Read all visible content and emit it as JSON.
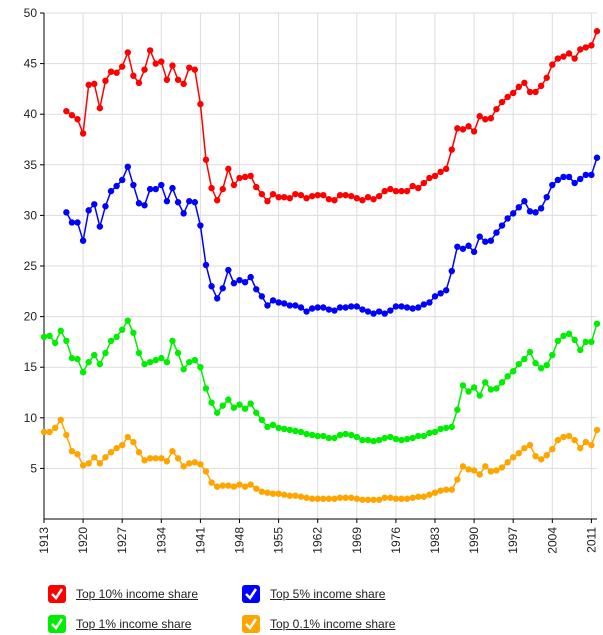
{
  "chart_data": {
    "type": "line",
    "x": [
      1913,
      1914,
      1915,
      1916,
      1917,
      1918,
      1919,
      1920,
      1921,
      1922,
      1923,
      1924,
      1925,
      1926,
      1927,
      1928,
      1929,
      1930,
      1931,
      1932,
      1933,
      1934,
      1935,
      1936,
      1937,
      1938,
      1939,
      1940,
      1941,
      1942,
      1943,
      1944,
      1945,
      1946,
      1947,
      1948,
      1949,
      1950,
      1951,
      1952,
      1953,
      1954,
      1955,
      1956,
      1957,
      1958,
      1959,
      1960,
      1961,
      1962,
      1963,
      1964,
      1965,
      1966,
      1967,
      1968,
      1969,
      1970,
      1971,
      1972,
      1973,
      1974,
      1975,
      1976,
      1977,
      1978,
      1979,
      1980,
      1981,
      1982,
      1983,
      1984,
      1985,
      1986,
      1987,
      1988,
      1989,
      1990,
      1991,
      1992,
      1993,
      1994,
      1995,
      1996,
      1997,
      1998,
      1999,
      2000,
      2001,
      2002,
      2003,
      2004,
      2005,
      2006,
      2007,
      2008,
      2009,
      2010,
      2011,
      2012
    ],
    "series": [
      {
        "name": "Top 10% income share",
        "color": "#ff0000",
        "values": [
          null,
          null,
          null,
          null,
          40.3,
          39.9,
          39.5,
          38.1,
          42.9,
          43.0,
          40.6,
          43.3,
          44.2,
          44.1,
          44.7,
          46.1,
          43.8,
          43.1,
          44.4,
          46.3,
          45.0,
          45.2,
          43.4,
          44.8,
          43.4,
          43.0,
          44.6,
          44.4,
          41.0,
          35.5,
          32.7,
          31.5,
          32.6,
          34.6,
          33.0,
          33.7,
          33.8,
          33.9,
          32.8,
          32.1,
          31.4,
          32.1,
          31.8,
          31.8,
          31.7,
          32.1,
          32.0,
          31.7,
          31.9,
          32.0,
          32.0,
          31.6,
          31.5,
          32.0,
          32.0,
          31.9,
          31.7,
          31.5,
          31.8,
          31.6,
          31.9,
          32.4,
          32.6,
          32.4,
          32.4,
          32.4,
          32.9,
          32.7,
          33.2,
          33.7,
          33.9,
          34.3,
          34.6,
          36.5,
          38.6,
          38.5,
          38.8,
          38.3,
          39.8,
          39.5,
          39.6,
          40.5,
          41.2,
          41.7,
          42.1,
          42.7,
          43.1,
          42.2,
          42.2,
          42.8,
          43.6,
          44.9,
          45.5,
          45.7,
          46.0,
          45.5,
          46.4,
          46.6,
          46.8,
          48.2
        ]
      },
      {
        "name": "Top 5% income share",
        "color": "#0000ff",
        "values": [
          null,
          null,
          null,
          null,
          30.3,
          29.3,
          29.3,
          27.5,
          30.5,
          31.1,
          28.9,
          30.9,
          32.4,
          32.9,
          33.5,
          34.8,
          33.0,
          31.2,
          31.0,
          32.6,
          32.6,
          33.0,
          31.4,
          32.7,
          31.3,
          30.2,
          31.4,
          31.3,
          29.0,
          25.1,
          23.0,
          21.8,
          22.8,
          24.6,
          23.3,
          23.6,
          23.4,
          23.9,
          22.7,
          22.0,
          21.1,
          21.6,
          21.4,
          21.3,
          21.1,
          21.1,
          20.9,
          20.5,
          20.8,
          20.9,
          20.9,
          20.7,
          20.6,
          20.9,
          20.9,
          21.0,
          21.0,
          20.7,
          20.5,
          20.3,
          20.5,
          20.3,
          20.6,
          21.0,
          21.0,
          20.9,
          20.8,
          20.9,
          21.2,
          21.4,
          22.0,
          22.3,
          22.6,
          24.5,
          26.9,
          26.7,
          27.0,
          26.4,
          27.9,
          27.4,
          27.5,
          28.3,
          29.0,
          29.7,
          30.2,
          30.8,
          31.4,
          30.4,
          30.3,
          30.7,
          31.8,
          33.0,
          33.5,
          33.8,
          33.8,
          33.2,
          33.6,
          34.0,
          34.0,
          35.7
        ]
      },
      {
        "name": "Top 1% income share",
        "color": "#00ee00",
        "values": [
          18.0,
          18.1,
          17.4,
          18.6,
          17.6,
          15.9,
          15.8,
          14.5,
          15.5,
          16.2,
          15.3,
          16.4,
          17.6,
          18.0,
          18.7,
          19.6,
          18.4,
          16.4,
          15.3,
          15.5,
          15.7,
          15.9,
          15.5,
          17.6,
          16.4,
          14.8,
          15.5,
          15.7,
          15.0,
          12.9,
          11.5,
          10.5,
          11.2,
          11.8,
          11.0,
          11.3,
          10.9,
          11.4,
          10.5,
          9.8,
          9.1,
          9.3,
          9.0,
          8.9,
          8.8,
          8.7,
          8.6,
          8.4,
          8.3,
          8.2,
          8.2,
          8.0,
          8.0,
          8.3,
          8.4,
          8.3,
          8.1,
          7.8,
          7.8,
          7.7,
          7.8,
          8.0,
          8.1,
          7.9,
          7.8,
          7.9,
          8.0,
          8.2,
          8.2,
          8.5,
          8.6,
          8.9,
          9.0,
          9.1,
          10.8,
          13.2,
          12.6,
          13.0,
          12.2,
          13.5,
          12.8,
          12.9,
          13.5,
          14.1,
          14.6,
          15.3,
          15.8,
          16.5,
          15.4,
          14.9,
          15.2,
          16.2,
          17.6,
          18.1,
          18.3,
          17.7,
          16.7,
          17.5,
          17.5,
          19.3
        ]
      },
      {
        "name": "Top 0.1% income share",
        "color": "#ffa500",
        "values": [
          8.6,
          8.6,
          9.0,
          9.8,
          8.3,
          6.7,
          6.4,
          5.3,
          5.5,
          6.1,
          5.5,
          6.1,
          6.6,
          7.0,
          7.3,
          8.1,
          7.6,
          6.6,
          5.8,
          6.0,
          6.0,
          6.0,
          5.7,
          6.7,
          6.0,
          5.2,
          5.5,
          5.6,
          5.4,
          4.7,
          3.6,
          3.2,
          3.3,
          3.3,
          3.2,
          3.4,
          3.2,
          3.4,
          3.0,
          2.7,
          2.6,
          2.5,
          2.5,
          2.4,
          2.3,
          2.3,
          2.2,
          2.1,
          2.0,
          2.0,
          2.0,
          2.0,
          2.0,
          2.1,
          2.1,
          2.1,
          2.0,
          1.9,
          1.9,
          1.9,
          1.9,
          2.1,
          2.1,
          2.0,
          2.0,
          2.0,
          2.1,
          2.2,
          2.2,
          2.4,
          2.6,
          2.8,
          2.9,
          2.9,
          3.9,
          5.2,
          4.9,
          4.8,
          4.4,
          5.2,
          4.7,
          4.8,
          5.1,
          5.6,
          6.1,
          6.5,
          7.0,
          7.3,
          6.2,
          5.9,
          6.3,
          6.9,
          7.8,
          8.1,
          8.2,
          7.8,
          7.0,
          7.6,
          7.3,
          8.8
        ]
      }
    ],
    "xlim": [
      1913,
      2012
    ],
    "xticks": [
      1913,
      1920,
      1927,
      1934,
      1941,
      1948,
      1955,
      1962,
      1969,
      1976,
      1983,
      1990,
      1997,
      2004,
      2011
    ],
    "ylim": [
      0,
      50
    ],
    "yticks": [
      5,
      10,
      15,
      20,
      25,
      30,
      35,
      40,
      45,
      50
    ],
    "grid": true
  }
}
